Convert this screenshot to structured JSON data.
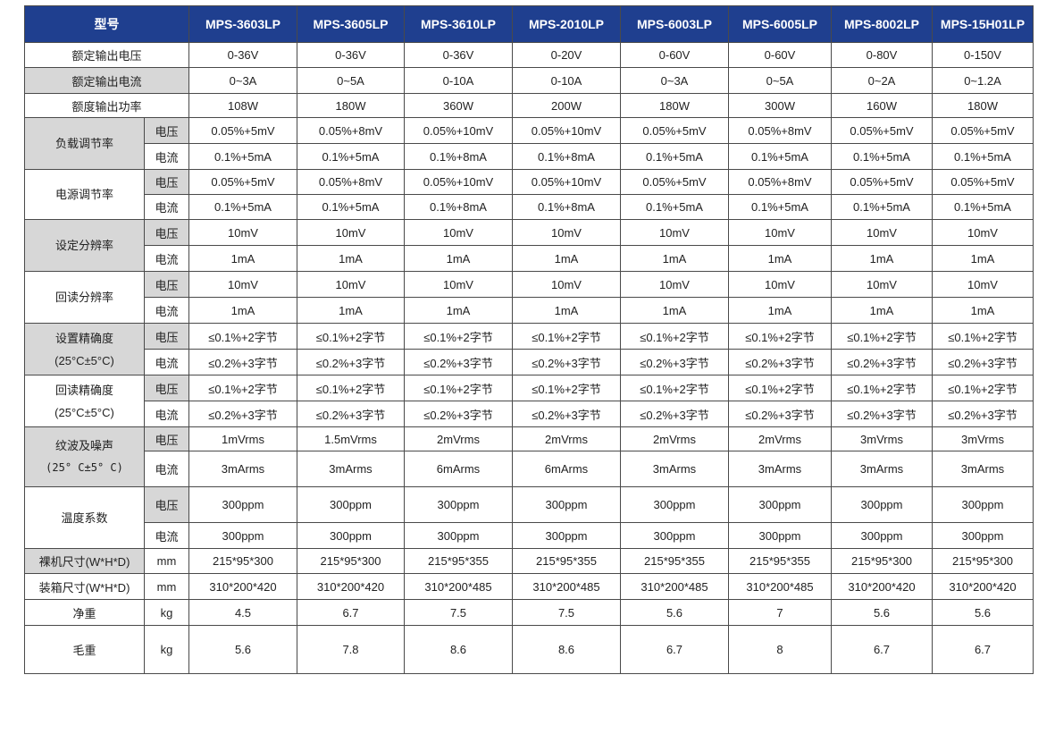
{
  "header": {
    "label": "型号",
    "models": [
      "MPS-3603LP",
      "MPS-3605LP",
      "MPS-3610LP",
      "MPS-2010LP",
      "MPS-6003LP",
      "MPS-6005LP",
      "MPS-8002LP",
      "MPS-15H01LP"
    ]
  },
  "rows": {
    "rated_voltage": {
      "label": "额定输出电压",
      "values": [
        "0-36V",
        "0-36V",
        "0-36V",
        "0-20V",
        "0-60V",
        "0-60V",
        "0-80V",
        "0-150V"
      ]
    },
    "rated_current": {
      "label": "额定输出电流",
      "values": [
        "0~3A",
        "0~5A",
        "0-10A",
        "0-10A",
        "0~3A",
        "0~5A",
        "0~2A",
        "0~1.2A"
      ]
    },
    "rated_power": {
      "label": "额度输出功率",
      "values": [
        "108W",
        "180W",
        "360W",
        "200W",
        "180W",
        "300W",
        "160W",
        "180W"
      ]
    },
    "load_reg": {
      "label": "负载调节率",
      "v_label": "电压",
      "v": [
        "0.05%+5mV",
        "0.05%+8mV",
        "0.05%+10mV",
        "0.05%+10mV",
        "0.05%+5mV",
        "0.05%+8mV",
        "0.05%+5mV",
        "0.05%+5mV"
      ],
      "i_label": "电流",
      "i": [
        "0.1%+5mA",
        "0.1%+5mA",
        "0.1%+8mA",
        "0.1%+8mA",
        "0.1%+5mA",
        "0.1%+5mA",
        "0.1%+5mA",
        "0.1%+5mA"
      ]
    },
    "line_reg": {
      "label": "电源调节率",
      "v_label": "电压",
      "v": [
        "0.05%+5mV",
        "0.05%+8mV",
        "0.05%+10mV",
        "0.05%+10mV",
        "0.05%+5mV",
        "0.05%+8mV",
        "0.05%+5mV",
        "0.05%+5mV"
      ],
      "i_label": "电流",
      "i": [
        "0.1%+5mA",
        "0.1%+5mA",
        "0.1%+8mA",
        "0.1%+8mA",
        "0.1%+5mA",
        "0.1%+5mA",
        "0.1%+5mA",
        "0.1%+5mA"
      ]
    },
    "set_res": {
      "label": "设定分辨率",
      "v_label": "电压",
      "v": [
        "10mV",
        "10mV",
        "10mV",
        "10mV",
        "10mV",
        "10mV",
        "10mV",
        "10mV"
      ],
      "i_label": "电流",
      "i": [
        "1mA",
        "1mA",
        "1mA",
        "1mA",
        "1mA",
        "1mA",
        "1mA",
        "1mA"
      ]
    },
    "read_res": {
      "label": "回读分辨率",
      "v_label": "电压",
      "v": [
        "10mV",
        "10mV",
        "10mV",
        "10mV",
        "10mV",
        "10mV",
        "10mV",
        "10mV"
      ],
      "i_label": "电流",
      "i": [
        "1mA",
        "1mA",
        "1mA",
        "1mA",
        "1mA",
        "1mA",
        "1mA",
        "1mA"
      ]
    },
    "set_acc": {
      "label": "设置精确度",
      "label2": "(25°C±5°C)",
      "v_label": "电压",
      "v": [
        "≤0.1%+2字节",
        "≤0.1%+2字节",
        "≤0.1%+2字节",
        "≤0.1%+2字节",
        "≤0.1%+2字节",
        "≤0.1%+2字节",
        "≤0.1%+2字节",
        "≤0.1%+2字节"
      ],
      "i_label": "电流",
      "i": [
        "≤0.2%+3字节",
        "≤0.2%+3字节",
        "≤0.2%+3字节",
        "≤0.2%+3字节",
        "≤0.2%+3字节",
        "≤0.2%+3字节",
        "≤0.2%+3字节",
        "≤0.2%+3字节"
      ]
    },
    "read_acc": {
      "label": "回读精确度",
      "label2": "(25°C±5°C)",
      "v_label": "电压",
      "v": [
        "≤0.1%+2字节",
        "≤0.1%+2字节",
        "≤0.1%+2字节",
        "≤0.1%+2字节",
        "≤0.1%+2字节",
        "≤0.1%+2字节",
        "≤0.1%+2字节",
        "≤0.1%+2字节"
      ],
      "i_label": "电流",
      "i": [
        "≤0.2%+3字节",
        "≤0.2%+3字节",
        "≤0.2%+3字节",
        "≤0.2%+3字节",
        "≤0.2%+3字节",
        "≤0.2%+3字节",
        "≤0.2%+3字节",
        "≤0.2%+3字节"
      ]
    },
    "ripple": {
      "label": "纹波及噪声",
      "label2": "(25° C±5° C)",
      "v_label": "电压",
      "v": [
        "1mVrms",
        "1.5mVrms",
        "2mVrms",
        "2mVrms",
        "2mVrms",
        "2mVrms",
        "3mVrms",
        "3mVrms"
      ],
      "i_label": "电流",
      "i": [
        "3mArms",
        "3mArms",
        "6mArms",
        "6mArms",
        "3mArms",
        "3mArms",
        "3mArms",
        "3mArms"
      ]
    },
    "temp_coef": {
      "label": "温度系数",
      "v_label": "电压",
      "v": [
        "300ppm",
        "300ppm",
        "300ppm",
        "300ppm",
        "300ppm",
        "300ppm",
        "300ppm",
        "300ppm"
      ],
      "i_label": "电流",
      "i": [
        "300ppm",
        "300ppm",
        "300ppm",
        "300ppm",
        "300ppm",
        "300ppm",
        "300ppm",
        "300ppm"
      ]
    },
    "bare_size": {
      "label": "裸机尺寸(W*H*D)",
      "unit": "mm",
      "values": [
        "215*95*300",
        "215*95*300",
        "215*95*355",
        "215*95*355",
        "215*95*355",
        "215*95*355",
        "215*95*300",
        "215*95*300"
      ]
    },
    "box_size": {
      "label": "装箱尺寸(W*H*D)",
      "unit": "mm",
      "values": [
        "310*200*420",
        "310*200*420",
        "310*200*485",
        "310*200*485",
        "310*200*485",
        "310*200*485",
        "310*200*420",
        "310*200*420"
      ]
    },
    "net_weight": {
      "label": "净重",
      "unit": "kg",
      "values": [
        "4.5",
        "6.7",
        "7.5",
        "7.5",
        "5.6",
        "7",
        "5.6",
        "5.6"
      ]
    },
    "gross_weight": {
      "label": "毛重",
      "unit": "kg",
      "values": [
        "5.6",
        "7.8",
        "8.6",
        "8.6",
        "6.7",
        "8",
        "6.7",
        "6.7"
      ]
    }
  },
  "colors": {
    "header_bg": "#1f3f8f",
    "label_bg": "#d7d7d7",
    "border": "#4a4a4a"
  }
}
